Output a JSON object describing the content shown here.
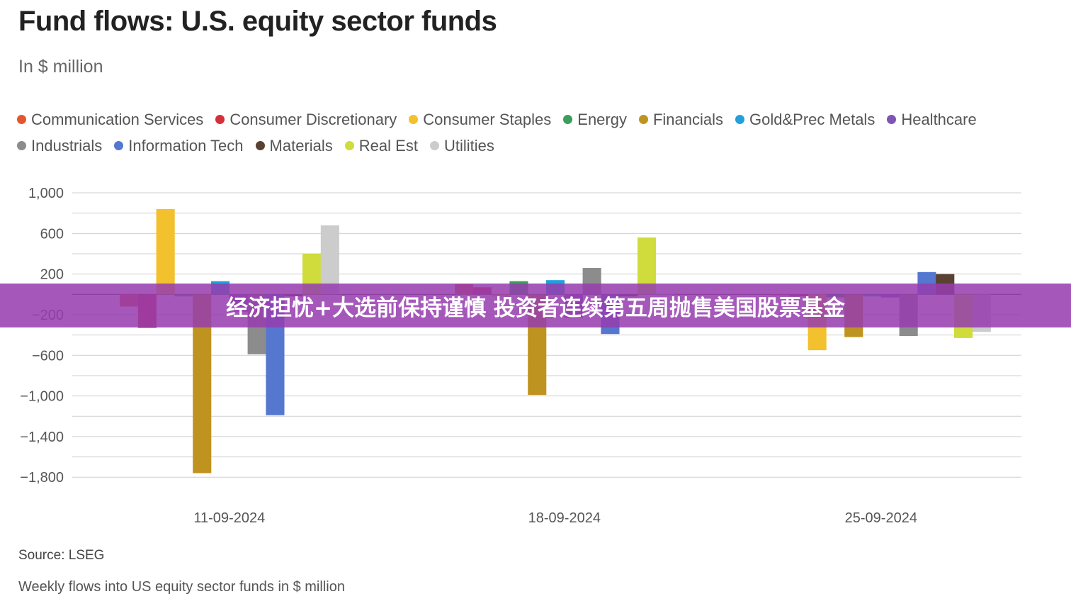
{
  "header": {
    "title": "Fund flows: U.S. equity sector funds",
    "subtitle": "In $ million"
  },
  "footer": {
    "source": "Source: LSEG",
    "note": "Weekly flows into US equity sector funds in $ million"
  },
  "banner": {
    "text": "经济担忧+大选前保持谨慎 投资者连续第五周抛售美国股票基金"
  },
  "chart_data": {
    "type": "bar",
    "title": "Fund flows: U.S. equity sector funds",
    "subtitle": "In $ million",
    "xlabel": "",
    "ylabel": "",
    "ylim": [
      -1900,
      1000
    ],
    "yticks": [
      1000,
      600,
      200,
      -200,
      -600,
      -1000,
      -1400,
      -1800
    ],
    "ytick_labels": [
      "1,000",
      "600",
      "200",
      "−200",
      "−600",
      "−1,000",
      "−1,400",
      "−1,800"
    ],
    "grid": true,
    "legend_position": "top",
    "categories": [
      "11-09-2024",
      "18-09-2024",
      "25-09-2024"
    ],
    "series": [
      {
        "name": "Communication Services",
        "color": "#e4572e",
        "values": [
          -120,
          100,
          -10
        ]
      },
      {
        "name": "Consumer Discretionary",
        "color": "#d62f3c",
        "values": [
          -330,
          70,
          -20
        ]
      },
      {
        "name": "Consumer Staples",
        "color": "#f3c02e",
        "values": [
          840,
          -20,
          -550
        ]
      },
      {
        "name": "Energy",
        "color": "#3b9e5c",
        "values": [
          -20,
          130,
          -30
        ]
      },
      {
        "name": "Financials",
        "color": "#bf9320",
        "values": [
          -1760,
          -990,
          -420
        ]
      },
      {
        "name": "Gold&Prec Metals",
        "color": "#21a0dc",
        "values": [
          130,
          140,
          -20
        ]
      },
      {
        "name": "Healthcare",
        "color": "#7d55b5",
        "values": [
          -170,
          -230,
          -30
        ]
      },
      {
        "name": "Industrials",
        "color": "#8c8c8c",
        "values": [
          -590,
          260,
          -410
        ]
      },
      {
        "name": "Information Tech",
        "color": "#5577d0",
        "values": [
          -1190,
          -390,
          220
        ]
      },
      {
        "name": "Materials",
        "color": "#5a4232",
        "values": [
          -20,
          -20,
          200
        ]
      },
      {
        "name": "Real Est",
        "color": "#cfdc3c",
        "values": [
          400,
          560,
          -430
        ]
      },
      {
        "name": "Utilities",
        "color": "#cccccc",
        "values": [
          680,
          -10,
          -370
        ]
      }
    ]
  }
}
